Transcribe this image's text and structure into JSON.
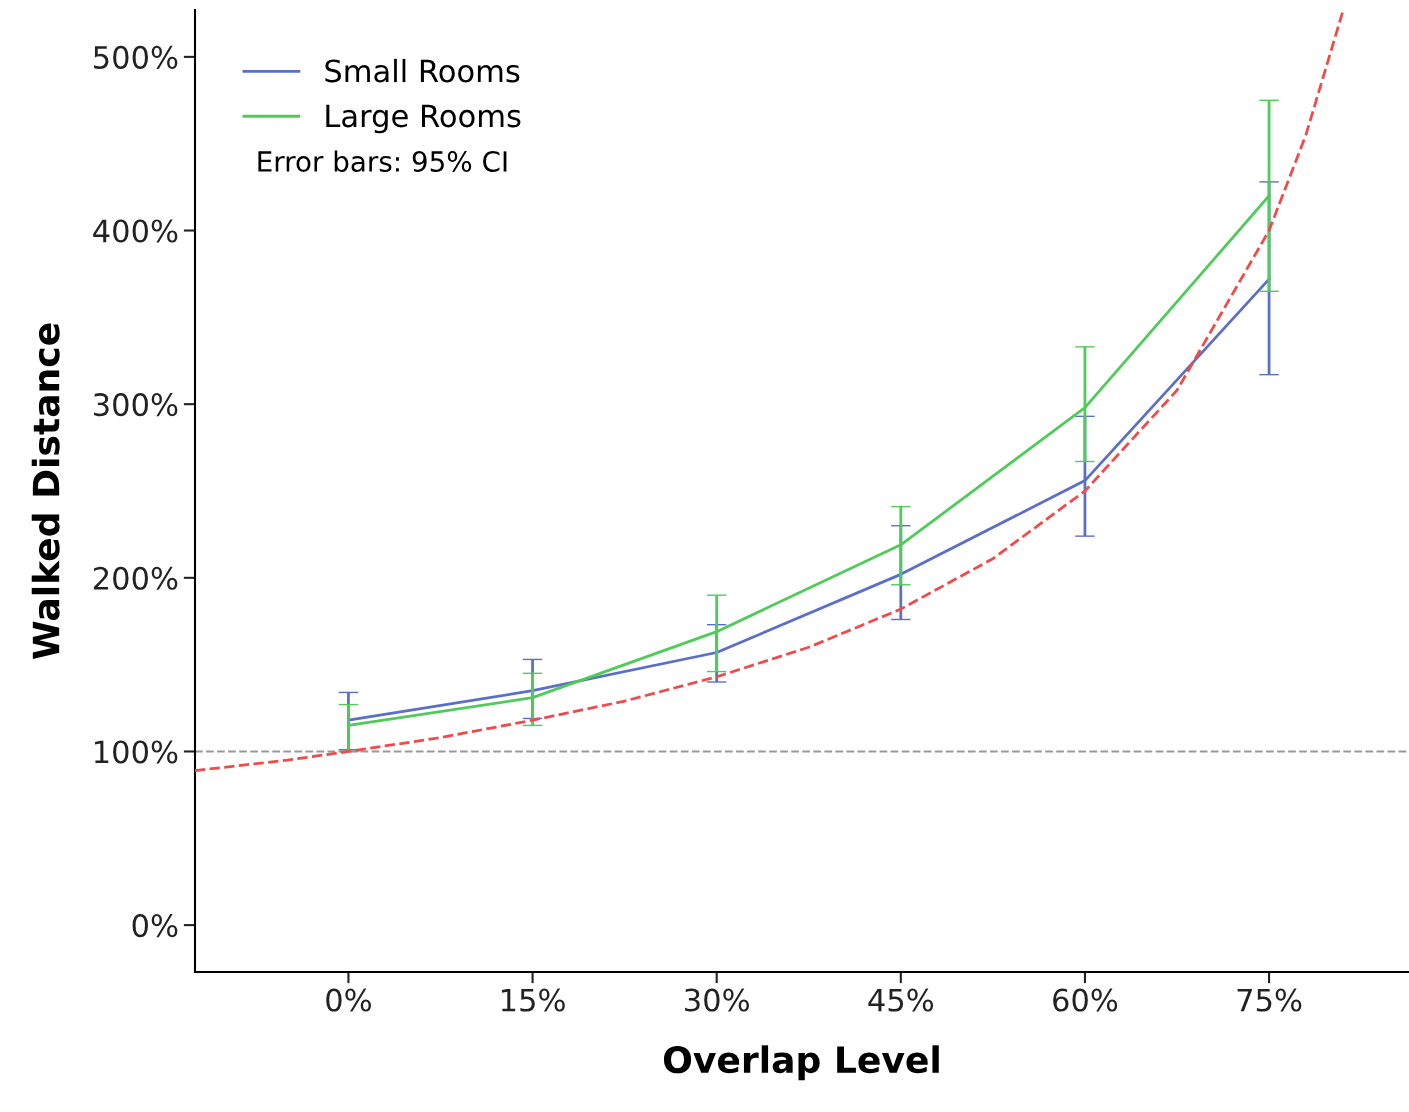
{
  "chart_data": {
    "type": "line",
    "xlabel": "Overlap Level",
    "ylabel": "Walked Distance",
    "x": [
      0,
      15,
      30,
      45,
      60,
      75
    ],
    "series": [
      {
        "name": "Small Rooms",
        "color": "#5b6fc7",
        "values": [
          118,
          135,
          157,
          202,
          256,
          372
        ],
        "errors": [
          [
            101,
            134
          ],
          [
            119,
            153
          ],
          [
            140,
            173
          ],
          [
            176,
            230
          ],
          [
            224,
            293
          ],
          [
            317,
            428
          ]
        ]
      },
      {
        "name": "Large Rooms",
        "color": "#4fcb5a",
        "values": [
          115,
          131,
          169,
          219,
          298,
          420
        ],
        "errors": [
          [
            100,
            127
          ],
          [
            115,
            145
          ],
          [
            146,
            190
          ],
          [
            196,
            241
          ],
          [
            267,
            333
          ],
          [
            365,
            475
          ]
        ]
      },
      {
        "type": "line",
        "color": "#f04a4a",
        "line_style": "dashed",
        "x": [
          -12.5,
          -5,
          0,
          7.5,
          15,
          22.5,
          30,
          37.5,
          45,
          52.5,
          60,
          67.5,
          75,
          78,
          81
        ],
        "values": [
          89,
          95,
          100,
          108,
          118,
          129,
          143,
          160,
          182,
          211,
          250,
          308,
          400,
          455,
          526
        ]
      }
    ],
    "xlim": [
      -12.5,
      86.4
    ],
    "ylim": [
      -27,
      527
    ],
    "xticks": [
      {
        "value": 0,
        "label": "0%"
      },
      {
        "value": 15,
        "label": "15%"
      },
      {
        "value": 30,
        "label": "30%"
      },
      {
        "value": 45,
        "label": "45%"
      },
      {
        "value": 60,
        "label": "60%"
      },
      {
        "value": 75,
        "label": "75%"
      }
    ],
    "yticks": [
      {
        "value": 0,
        "label": "0%"
      },
      {
        "value": 100,
        "label": "100%"
      },
      {
        "value": 200,
        "label": "200%"
      },
      {
        "value": 300,
        "label": "300%"
      },
      {
        "value": 400,
        "label": "400%"
      },
      {
        "value": 500,
        "label": "500%"
      }
    ],
    "ref_lines": [
      {
        "axis": "y",
        "value": 100,
        "color": "#999999",
        "line_style": "dashed"
      }
    ],
    "annotations": [
      "Error bars: 95% CI"
    ],
    "legend": "top left",
    "grid": false
  }
}
